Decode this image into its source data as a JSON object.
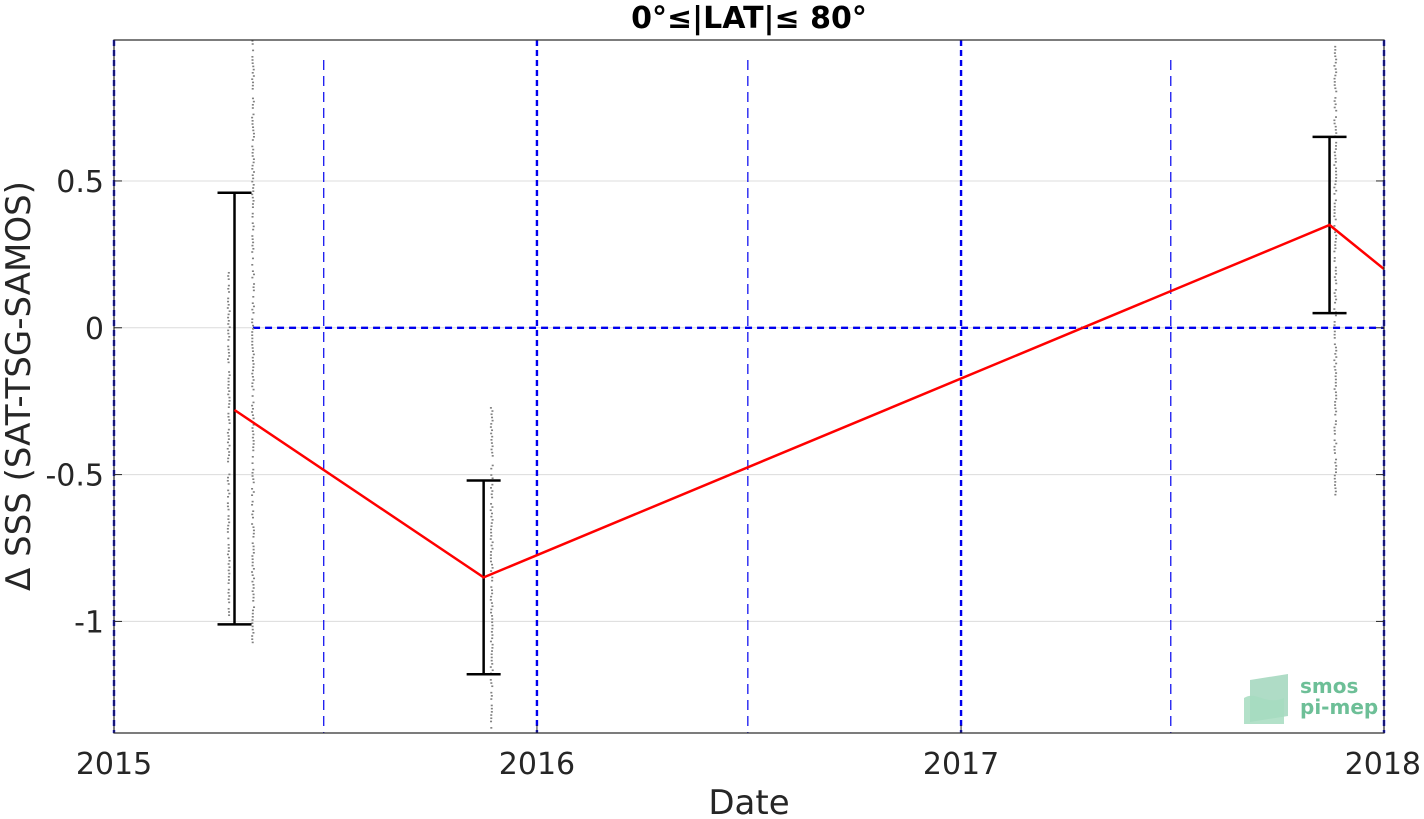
{
  "chart_data": {
    "type": "line",
    "title": "0°≤|LAT|≤ 80°",
    "xlabel": "Date",
    "ylabel": "Δ SSS (SAT-TSG-SAMOS)",
    "x_axis_type": "date",
    "xlim": [
      "2015-01-01",
      "2018-01-01"
    ],
    "ylim": [
      -1.38,
      0.98
    ],
    "x_ticks": [
      "2015",
      "2016",
      "2017",
      "2018"
    ],
    "y_ticks": [
      -1,
      -0.5,
      0,
      0.5
    ],
    "y_tick_labels": [
      "-1",
      "-0.5",
      "0",
      "0.5"
    ],
    "grid": true,
    "zero_line_color": "#0000ee",
    "series_color": "#ff0000",
    "errorbar_color": "#000000",
    "scatter_color": "#808080",
    "series": [
      {
        "x": [
          "2015-04-15",
          "2015-11-16",
          "2017-11-15",
          "2018-01-01"
        ],
        "values": [
          -0.28,
          -0.85,
          0.35,
          0.2
        ],
        "error_low": [
          -1.01,
          -1.18,
          0.05,
          null
        ],
        "error_high": [
          0.46,
          -0.52,
          0.65,
          null
        ]
      }
    ],
    "scatter_clusters": [
      {
        "x": "2015-04-10",
        "ymin": -0.98,
        "ymax": 0.19
      },
      {
        "x": "2015-05-01",
        "ymin": -1.07,
        "ymax": 0.98
      },
      {
        "x": "2015-11-23",
        "ymin": -1.37,
        "ymax": -0.27
      },
      {
        "x": "2017-11-20",
        "ymin": -0.57,
        "ymax": 0.96
      }
    ],
    "vertical_dashed_lines": [
      "2015-01-01",
      "2015-07-01",
      "2016-01-01",
      "2016-07-01",
      "2017-01-01",
      "2017-07-01",
      "2018-01-01"
    ]
  },
  "logo": {
    "line1": "smos",
    "line2": "pi-mep",
    "color": "#6dbf97"
  }
}
